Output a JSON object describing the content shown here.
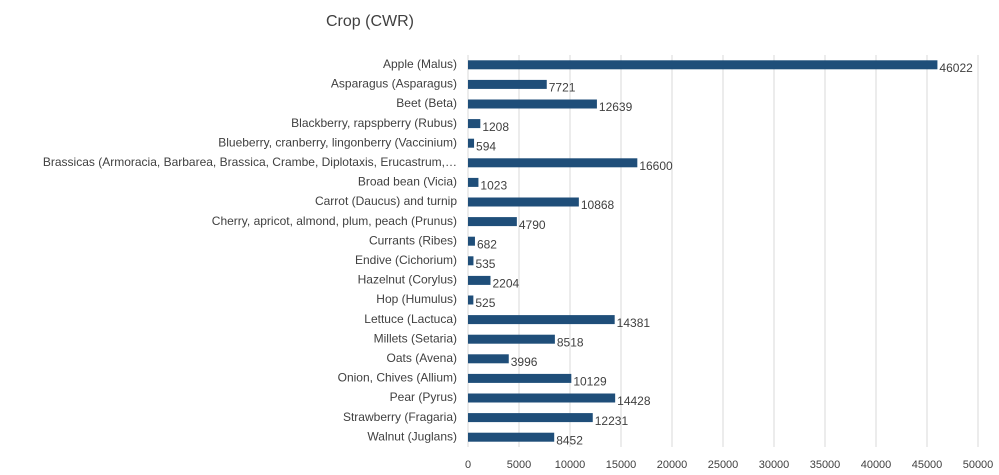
{
  "chart_data": {
    "type": "bar",
    "orientation": "horizontal",
    "title": "Crop (CWR)",
    "categories": [
      "Apple (Malus)",
      "Asparagus (Asparagus)",
      "Beet (Beta)",
      "Blackberry, rapspberry (Rubus)",
      "Blueberry, cranberry, lingonberry (Vaccinium)",
      "Brassicas (Armoracia, Barbarea, Brassica, Crambe, Diplotaxis, Erucastrum,…",
      "Broad bean (Vicia)",
      "Carrot (Daucus) and turnip",
      "Cherry, apricot, almond, plum, peach (Prunus)",
      "Currants (Ribes)",
      "Endive (Cichorium)",
      "Hazelnut (Corylus)",
      "Hop (Humulus)",
      "Lettuce (Lactuca)",
      "Millets (Setaria)",
      "Oats (Avena)",
      "Onion, Chives (Allium)",
      "Pear (Pyrus)",
      "Strawberry (Fragaria)",
      "Walnut (Juglans)"
    ],
    "values": [
      46022,
      7721,
      12639,
      1208,
      594,
      16600,
      1023,
      10868,
      4790,
      682,
      535,
      2204,
      525,
      14381,
      8518,
      3996,
      10129,
      14428,
      12231,
      8452
    ],
    "color": "#1f4e79",
    "xlim": [
      0,
      50000
    ],
    "xticks": [
      0,
      5000,
      10000,
      15000,
      20000,
      25000,
      30000,
      35000,
      40000,
      45000,
      50000
    ],
    "grid": true
  }
}
